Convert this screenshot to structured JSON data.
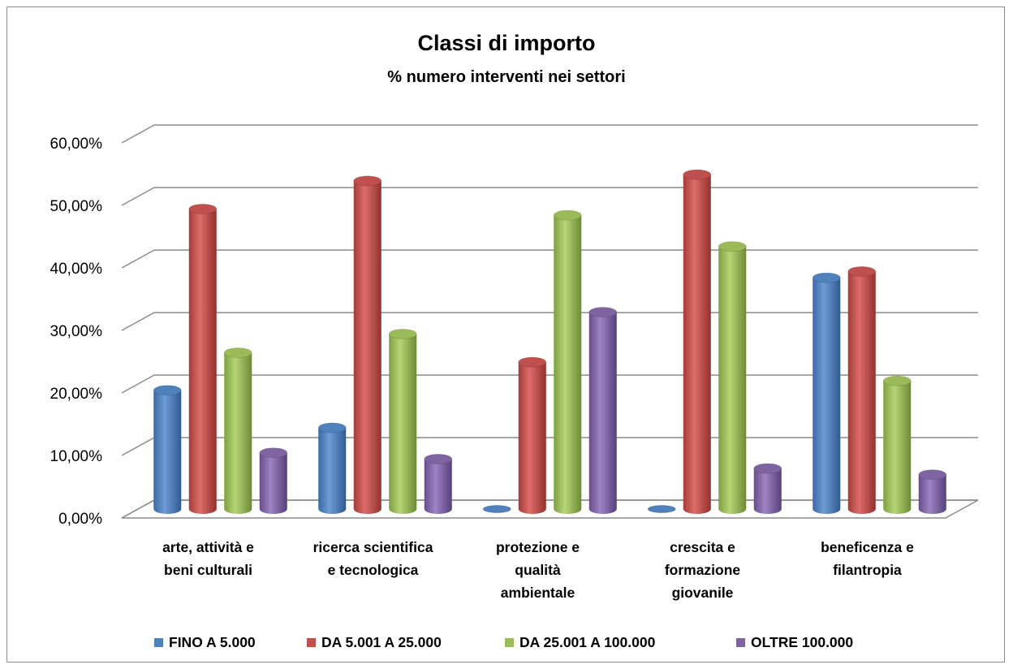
{
  "chart_data": {
    "type": "bar",
    "title": "Classi di importo",
    "subtitle": "% numero interventi nei settori",
    "xlabel": "",
    "ylabel": "",
    "ylim": [
      0,
      60
    ],
    "y_ticks": [
      "0,00%",
      "10,00%",
      "20,00%",
      "30,00%",
      "40,00%",
      "50,00%",
      "60,00%"
    ],
    "grid": true,
    "legend_position": "bottom",
    "categories": [
      [
        "arte, attività e",
        "beni culturali"
      ],
      [
        "ricerca scientifica",
        "e tecnologica"
      ],
      [
        "protezione e",
        "qualità",
        "ambientale"
      ],
      [
        "crescita e",
        "formazione",
        "giovanile"
      ],
      [
        "beneficenza e",
        "filantropia"
      ]
    ],
    "series": [
      {
        "name": "FINO A 5.000",
        "color": "#4f81bd",
        "values": [
          19.0,
          13.0,
          0.0,
          0.0,
          37.0
        ]
      },
      {
        "name": "DA 5.001 A 25.000",
        "color": "#c0504d",
        "values": [
          48.0,
          52.5,
          23.5,
          53.5,
          38.0
        ]
      },
      {
        "name": "DA 25.001 A 100.000",
        "color": "#9bbb59",
        "values": [
          25.0,
          28.0,
          47.0,
          42.0,
          20.5
        ]
      },
      {
        "name": "OLTRE 100.000",
        "color": "#8064a2",
        "values": [
          9.0,
          8.0,
          31.5,
          6.5,
          5.5
        ]
      }
    ]
  }
}
